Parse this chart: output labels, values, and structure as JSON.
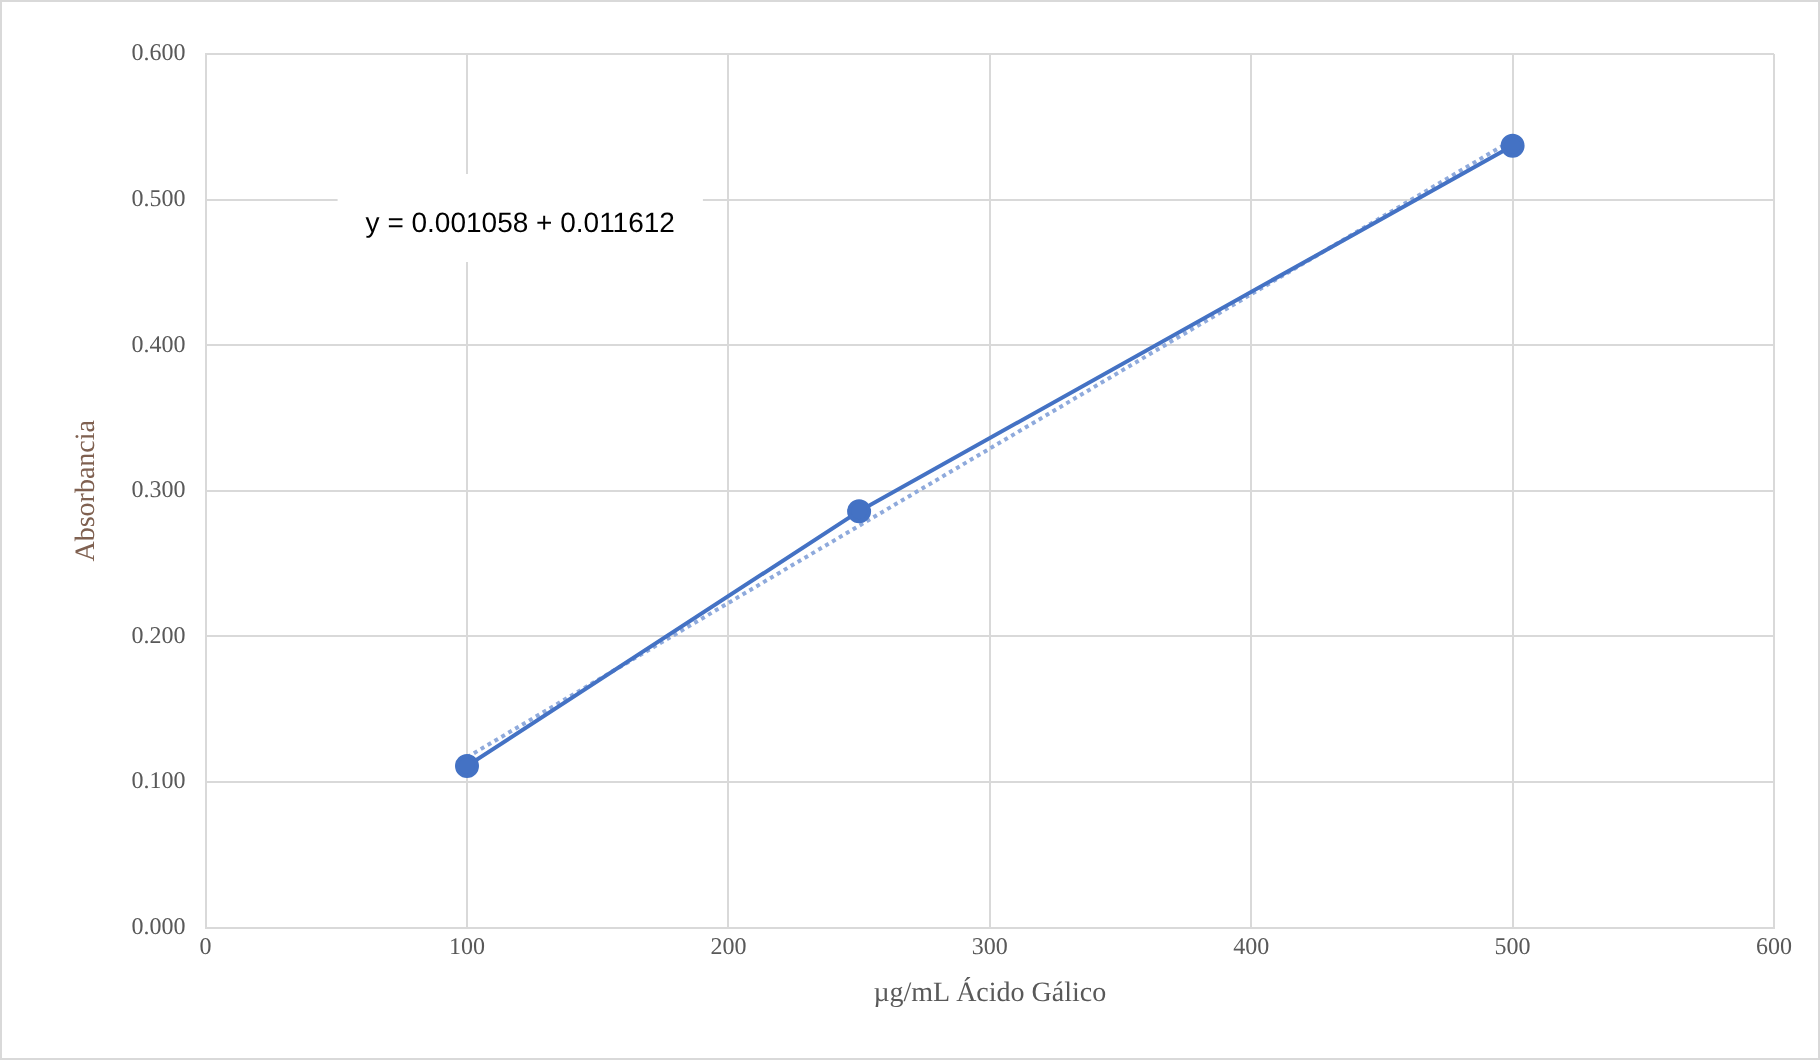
{
  "chart_data": {
    "type": "scatter",
    "xlabel": "µg/mL Ácido Gálico",
    "ylabel": "Absorbancia",
    "annotations": [
      "y = 0.001058 + 0.011612"
    ],
    "series": [
      {
        "type": "line",
        "color": "#4472c4",
        "x": [
          100,
          250,
          500
        ],
        "values": [
          0.111,
          0.286,
          0.537
        ],
        "marker": "circle",
        "line_style": "solid"
      },
      {
        "type": "line",
        "color": "#8faadc",
        "x": [
          100,
          500
        ],
        "values": [
          0.117,
          0.541
        ],
        "marker": "none",
        "line_style": "dotted"
      }
    ],
    "xlim": [
      0,
      600
    ],
    "xticks": [
      0,
      100,
      200,
      300,
      400,
      500,
      600
    ],
    "ylim": [
      0,
      0.6
    ],
    "yticks": [
      {
        "value": 0,
        "label": "0.000"
      },
      {
        "value": 0.1,
        "label": "0.100"
      },
      {
        "value": 0.2,
        "label": "0.200"
      },
      {
        "value": 0.3,
        "label": "0.300"
      },
      {
        "value": 0.4,
        "label": "0.400"
      },
      {
        "value": 0.5,
        "label": "0.500"
      },
      {
        "value": 0.6,
        "label": "0.600"
      }
    ],
    "grid": true
  }
}
